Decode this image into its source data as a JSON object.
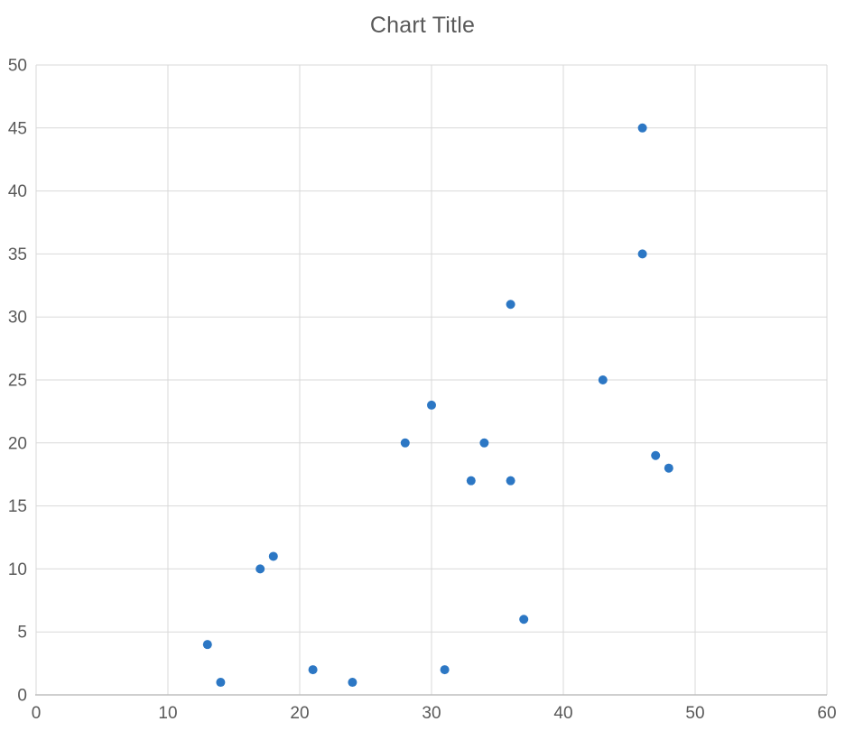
{
  "page": {
    "background_color": "#ffffff"
  },
  "chart": {
    "title": "Chart Title",
    "title_color": "#595959",
    "tick_label_color": "#595959",
    "gridline_color": "#d9d9d9",
    "axis_line_color": "#bfbfbf",
    "point_color": "#2c77c4"
  },
  "chart_data": {
    "type": "scatter",
    "title": "Chart Title",
    "xlabel": "",
    "ylabel": "",
    "xlim": [
      0,
      60
    ],
    "ylim": [
      0,
      50
    ],
    "x_ticks": [
      0,
      10,
      20,
      30,
      40,
      50,
      60
    ],
    "y_ticks": [
      0,
      5,
      10,
      15,
      20,
      25,
      30,
      35,
      40,
      45,
      50
    ],
    "grid": true,
    "legend": false,
    "marker_radius": 5,
    "points": [
      [
        13,
        4
      ],
      [
        14,
        1
      ],
      [
        17,
        10
      ],
      [
        18,
        11
      ],
      [
        21,
        2
      ],
      [
        24,
        1
      ],
      [
        28,
        20
      ],
      [
        30,
        23
      ],
      [
        31,
        2
      ],
      [
        33,
        17
      ],
      [
        34,
        20
      ],
      [
        36,
        31
      ],
      [
        36,
        17
      ],
      [
        37,
        6
      ],
      [
        43,
        25
      ],
      [
        46,
        45
      ],
      [
        46,
        35
      ],
      [
        47,
        19
      ],
      [
        48,
        18
      ]
    ]
  }
}
